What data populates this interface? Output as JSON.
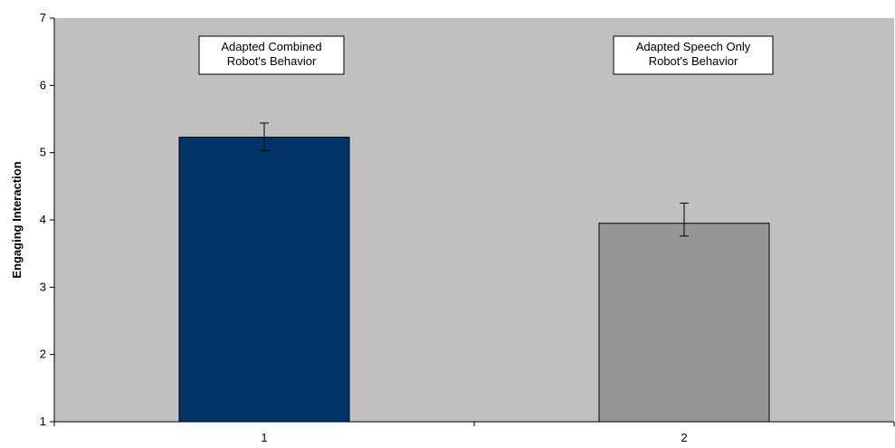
{
  "chart_data": {
    "type": "bar",
    "categories": [
      "1",
      "2"
    ],
    "values": [
      5.23,
      3.95
    ],
    "errors": [
      {
        "low": 5.03,
        "high": 5.44
      },
      {
        "low": 3.76,
        "high": 4.25
      }
    ],
    "bar_colors": [
      "#003366",
      "#969696"
    ],
    "plot_background": "#c0c0c0",
    "ylim": [
      1,
      7
    ],
    "yticks": [
      1,
      2,
      3,
      4,
      5,
      6,
      7
    ],
    "xlabel": "",
    "ylabel": "Engaging Interaction",
    "title": "",
    "grid": false,
    "annotations": [
      {
        "lines": [
          "Adapted Combined",
          "Robot's Behavior"
        ],
        "category": "1"
      },
      {
        "lines": [
          "Adapted Speech Only",
          "Robot's Behavior"
        ],
        "category": "2"
      }
    ]
  }
}
